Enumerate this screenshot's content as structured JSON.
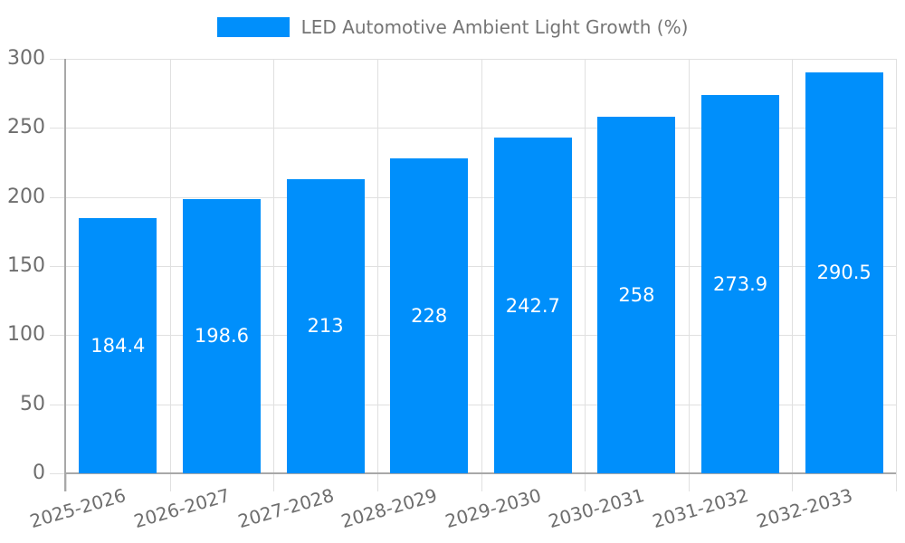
{
  "page": {
    "background": "#ffffff"
  },
  "legend": {
    "label": "LED Automotive Ambient Light Growth (%)",
    "position": "top"
  },
  "chart_data": {
    "type": "bar",
    "title": "LED Automotive Ambient Light Growth (%)",
    "series_name": "LED Automotive Ambient Light Growth (%)",
    "categories": [
      "2025-2026",
      "2026-2027",
      "2027-2028",
      "2028-2029",
      "2029-2030",
      "2030-2031",
      "2031-2032",
      "2032-2033"
    ],
    "values": [
      184.4,
      198.6,
      213,
      228,
      242.7,
      258,
      273.9,
      290.5
    ],
    "value_labels": [
      "184.4",
      "198.6",
      "213",
      "228",
      "242.7",
      "258",
      "273.9",
      "290.5"
    ],
    "xlabel": "",
    "ylabel": "",
    "ylim": [
      0,
      300
    ],
    "yticks": [
      0,
      50,
      100,
      150,
      200,
      250,
      300
    ],
    "ytick_labels": [
      "0",
      "50",
      "100",
      "150",
      "200",
      "250",
      "300"
    ],
    "grid": true,
    "legend_position": "top",
    "x_label_rotation_deg": -16,
    "bar_color": "#008FFB",
    "colors": {
      "bar": "#008FFB",
      "value_label_text": "#ffffff",
      "axis_text": "#6e6e6e",
      "legend_text": "#757575",
      "gridline": "#e0e0e0",
      "axis_line": "#a8a8a8",
      "background": "#ffffff"
    }
  }
}
